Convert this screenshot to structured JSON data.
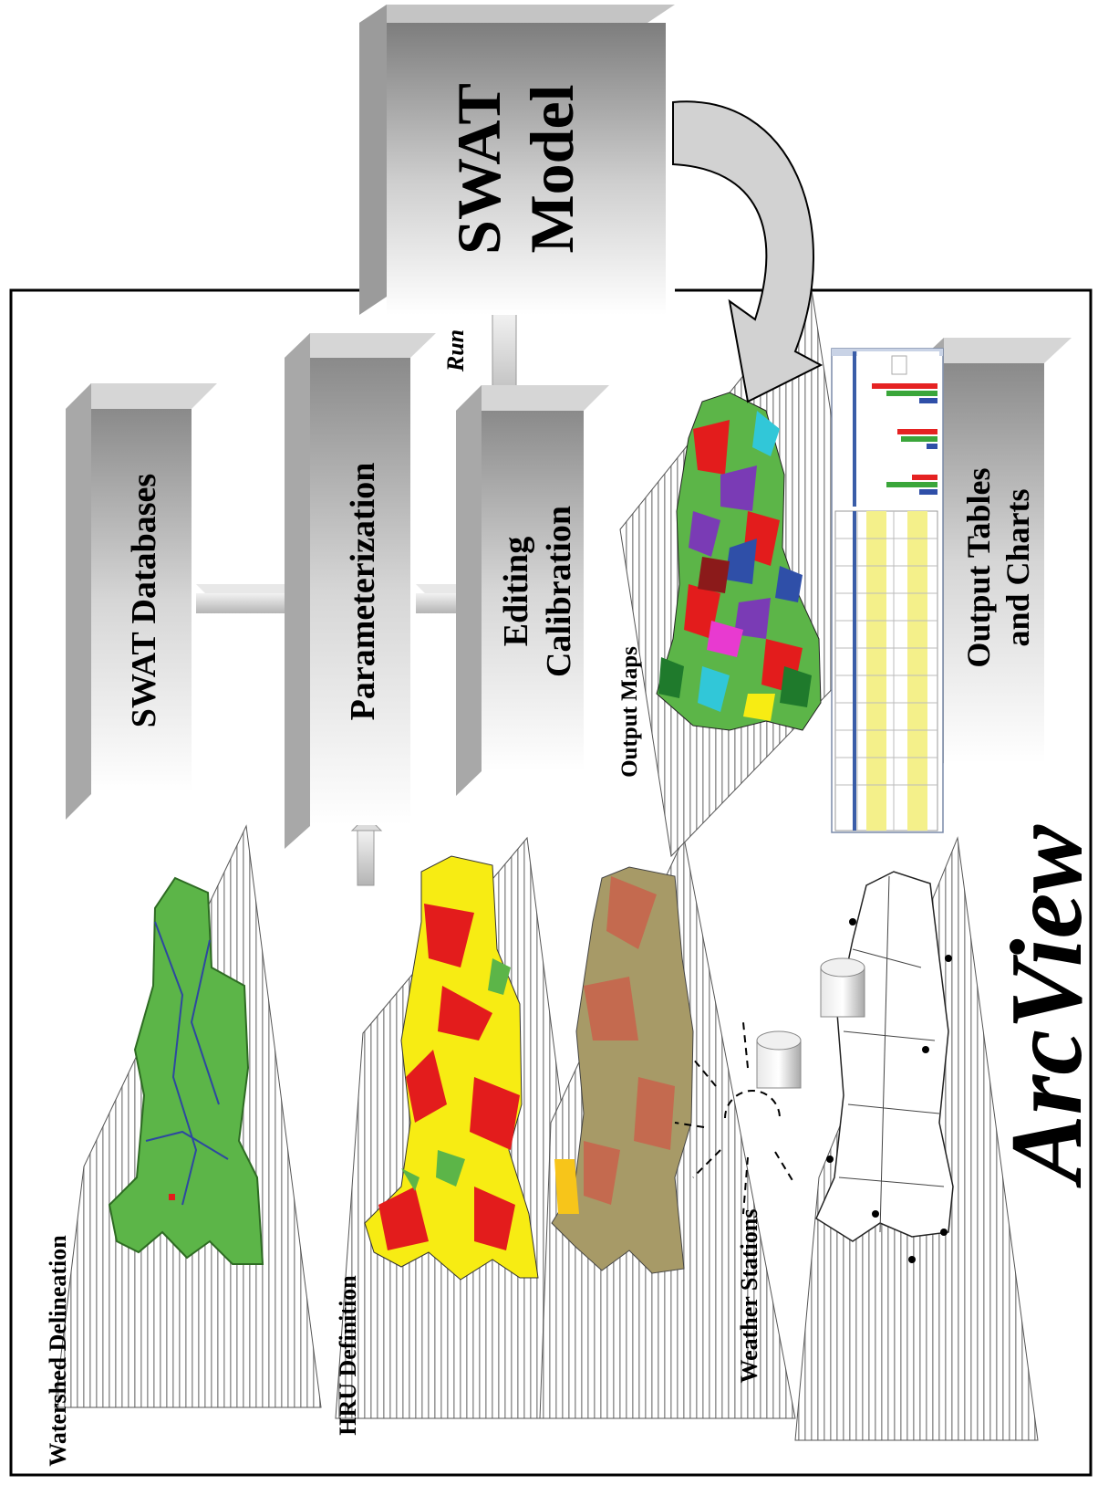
{
  "labels": {
    "swat_model_line1": "SWAT",
    "swat_model_line2": "Model",
    "swat_databases": "SWAT Databases",
    "parameterization": "Parameterization",
    "editing": "Editing",
    "calibration": "Calibration",
    "run": "Run",
    "output_maps": "Output Maps",
    "output_tables_line1": "Output Tables",
    "output_tables_line2": "and Charts",
    "watershed_delineation": "Watershed Delineation",
    "hru_definition": "HRU Definition",
    "weather_stations": "Weather Stations",
    "arcview": "ArcView"
  },
  "colors": {
    "watershed_fill": "#5cb548",
    "landuse_red": "#e31c1c",
    "landuse_yellow": "#f7ec13",
    "soil_tan": "#a79a67",
    "soil_brown": "#c46a4f",
    "box_gray": "#b8b8b8",
    "chart_red": "#e52222",
    "chart_green": "#3aa63a",
    "chart_blue": "#2f4fa8"
  },
  "chart_data": {
    "type": "bar",
    "categories": [
      "",
      "",
      ""
    ],
    "series": [
      {
        "values": [
          0.9,
          0.55,
          0.35
        ]
      },
      {
        "values": [
          0.7,
          0.5,
          0.7
        ]
      },
      {
        "values": [
          0.25,
          0.15,
          0.25
        ]
      }
    ]
  }
}
